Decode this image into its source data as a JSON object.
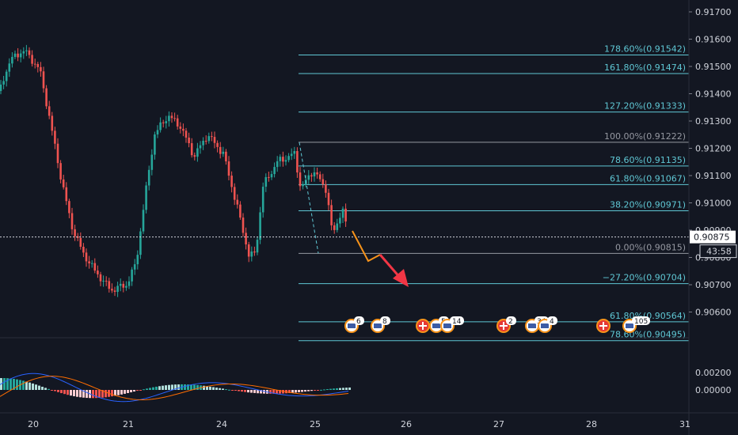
{
  "chart_data": {
    "type": "candlestick",
    "price_axis": {
      "ticks": [
        "0.91700",
        "0.91600",
        "0.91500",
        "0.91400",
        "0.91300",
        "0.91200",
        "0.91100",
        "0.91000",
        "0.90900",
        "0.90800",
        "0.90700",
        "0.90600"
      ],
      "current_price": "0.90875",
      "countdown": "43:58"
    },
    "time_axis": {
      "ticks": [
        "20",
        "21",
        "24",
        "25",
        "26",
        "27",
        "28",
        "31"
      ]
    },
    "macd_axis": {
      "ticks": [
        "0.00200",
        "0.00000"
      ]
    },
    "fib_levels": [
      {
        "label": "178.60%(0.91542)",
        "price": 0.91542,
        "color": "#5fc7d4"
      },
      {
        "label": "161.80%(0.91474)",
        "price": 0.91474,
        "color": "#5fc7d4"
      },
      {
        "label": "127.20%(0.91333)",
        "price": 0.91333,
        "color": "#5fc7d4"
      },
      {
        "label": "100.00%(0.91222)",
        "price": 0.91222,
        "color": "#9598a1"
      },
      {
        "label": "78.60%(0.91135)",
        "price": 0.91135,
        "color": "#5fc7d4"
      },
      {
        "label": "61.80%(0.91067)",
        "price": 0.91067,
        "color": "#5fc7d4"
      },
      {
        "label": "38.20%(0.90971)",
        "price": 0.90971,
        "color": "#5fc7d4"
      },
      {
        "label": "0.00%(0.90815)",
        "price": 0.90815,
        "color": "#9598a1"
      },
      {
        "label": "−27.20%(0.90704)",
        "price": 0.90704,
        "color": "#5fc7d4"
      },
      {
        "label": "61.80%(0.90564)",
        "price": 0.90564,
        "color": "#5fc7d4"
      },
      {
        "label": "78.60%(0.90495)",
        "price": 0.90495,
        "color": "#5fc7d4"
      }
    ],
    "events": [
      {
        "kind": "us",
        "count": "6"
      },
      {
        "kind": "us",
        "count": "8"
      },
      {
        "kind": "ch",
        "count": ""
      },
      {
        "kind": "us",
        "count": "5"
      },
      {
        "kind": "us",
        "count": "14"
      },
      {
        "kind": "ch",
        "count": "2"
      },
      {
        "kind": "us",
        "count": "34"
      },
      {
        "kind": "us",
        "count": "4"
      },
      {
        "kind": "ch",
        "count": ""
      },
      {
        "kind": "us",
        "count": "105"
      }
    ],
    "colors": {
      "up": "#26a69a",
      "down": "#ef5350",
      "background": "#131722",
      "fib": "#5fc7d4",
      "fib_base": "#9598a1",
      "macd_line": "#2962ff",
      "signal_line": "#ff6d00",
      "projection": "#f7931a",
      "arrow": "#f23645"
    }
  }
}
